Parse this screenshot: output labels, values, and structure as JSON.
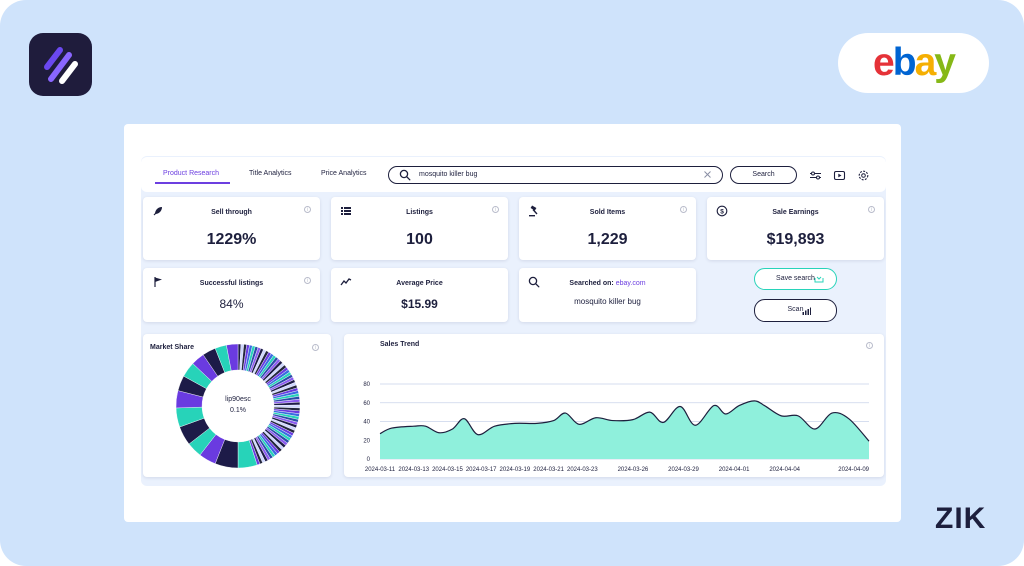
{
  "brand": {
    "ebay_letters": [
      {
        "ch": "e",
        "color": "#e53238"
      },
      {
        "ch": "b",
        "color": "#0064d2"
      },
      {
        "ch": "a",
        "color": "#f5af02"
      },
      {
        "ch": "y",
        "color": "#86b817"
      }
    ],
    "watermark": "ZIK"
  },
  "colors": {
    "accent": "#6c3fe0",
    "teal": "#27d3b9",
    "area_fill": "#8ff0dc",
    "navy": "#1d1f3d"
  },
  "tabs": [
    {
      "label": "Product Research",
      "active": true
    },
    {
      "label": "Title Analytics",
      "active": false
    },
    {
      "label": "Price Analytics",
      "active": false
    }
  ],
  "search": {
    "value": "mosquito killer bug",
    "button_label": "Search"
  },
  "toolbar_icons": [
    "filter-sliders-icon",
    "video-play-icon",
    "settings-gear-icon"
  ],
  "stats": [
    {
      "title": "Sell through",
      "value": "1229%",
      "icon": "rocket-icon"
    },
    {
      "title": "Listings",
      "value": "100",
      "icon": "list-icon"
    },
    {
      "title": "Sold Items",
      "value": "1,229",
      "icon": "gavel-icon"
    },
    {
      "title": "Sale Earnings",
      "value": "$19,893",
      "icon": "dollar-coin-icon"
    }
  ],
  "stats2": [
    {
      "title": "Successful listings",
      "value": "84%",
      "icon": "flag-icon"
    },
    {
      "title": "Average Price",
      "value": "$15.99",
      "icon": "trend-line-icon"
    }
  ],
  "searched": {
    "label": "Searched on:",
    "site": "ebay.com",
    "query": "mosquito killer bug"
  },
  "actions": {
    "save_label": "Save search",
    "scan_label": "Scan"
  },
  "market_share": {
    "title": "Market Share",
    "center_name": "lip90esc",
    "center_value": "0.1%"
  },
  "chart_data": {
    "type": "area",
    "title": "Sales Trend",
    "ylim": [
      0,
      80
    ],
    "yticks": [
      0,
      20,
      40,
      60,
      80
    ],
    "x_labels": [
      "2024-03-11",
      "2024-03-13",
      "2024-03-15",
      "2024-03-17",
      "2024-03-19",
      "2024-03-21",
      "2024-03-23",
      "2024-03-26",
      "2024-03-29",
      "2024-04-01",
      "2024-04-04",
      "2024-04-09"
    ],
    "x_label_positions": [
      0,
      2,
      4,
      6,
      8,
      10,
      12,
      15,
      18,
      21,
      24,
      29
    ],
    "x_index_max": 29,
    "values": [
      {
        "x": 0,
        "y": 27
      },
      {
        "x": 0.7,
        "y": 33
      },
      {
        "x": 2,
        "y": 35
      },
      {
        "x": 2.7,
        "y": 35
      },
      {
        "x": 3.5,
        "y": 28
      },
      {
        "x": 4.3,
        "y": 32
      },
      {
        "x": 5,
        "y": 43
      },
      {
        "x": 5.8,
        "y": 26
      },
      {
        "x": 6.8,
        "y": 35
      },
      {
        "x": 8,
        "y": 38
      },
      {
        "x": 9.3,
        "y": 38
      },
      {
        "x": 10.3,
        "y": 41
      },
      {
        "x": 11,
        "y": 49
      },
      {
        "x": 11.8,
        "y": 37
      },
      {
        "x": 12.8,
        "y": 44
      },
      {
        "x": 13.8,
        "y": 41
      },
      {
        "x": 15,
        "y": 42
      },
      {
        "x": 16,
        "y": 50
      },
      {
        "x": 16.8,
        "y": 39
      },
      {
        "x": 17.8,
        "y": 56
      },
      {
        "x": 18.7,
        "y": 36
      },
      {
        "x": 19.8,
        "y": 57
      },
      {
        "x": 20.5,
        "y": 48
      },
      {
        "x": 21.3,
        "y": 57
      },
      {
        "x": 22.2,
        "y": 62
      },
      {
        "x": 22.8,
        "y": 57
      },
      {
        "x": 23.8,
        "y": 46
      },
      {
        "x": 24.8,
        "y": 46
      },
      {
        "x": 25.8,
        "y": 32
      },
      {
        "x": 26.8,
        "y": 49
      },
      {
        "x": 27.8,
        "y": 43
      },
      {
        "x": 29,
        "y": 19
      }
    ]
  },
  "donut": {
    "colors": [
      "#27d3b9",
      "#1d1b48",
      "#6a3be0",
      "#2a4ca8",
      "#cfd7ff",
      "#3a6be0",
      "#8c5cf0",
      "#23263f"
    ],
    "big_segments": [
      {
        "fraction": 0.05,
        "color": "#27d3b9"
      },
      {
        "fraction": 0.06,
        "color": "#1d1b48"
      },
      {
        "fraction": 0.045,
        "color": "#6a3be0"
      },
      {
        "fraction": 0.04,
        "color": "#27d3b9"
      },
      {
        "fraction": 0.05,
        "color": "#1d1b48"
      },
      {
        "fraction": 0.05,
        "color": "#27d3b9"
      },
      {
        "fraction": 0.045,
        "color": "#6a3be0"
      },
      {
        "fraction": 0.04,
        "color": "#1d1b48"
      },
      {
        "fraction": 0.04,
        "color": "#27d3b9"
      },
      {
        "fraction": 0.035,
        "color": "#6a3be0"
      },
      {
        "fraction": 0.035,
        "color": "#1d1b48"
      },
      {
        "fraction": 0.03,
        "color": "#27d3b9"
      },
      {
        "fraction": 0.03,
        "color": "#6a3be0"
      }
    ],
    "small_segment_count": 60
  }
}
